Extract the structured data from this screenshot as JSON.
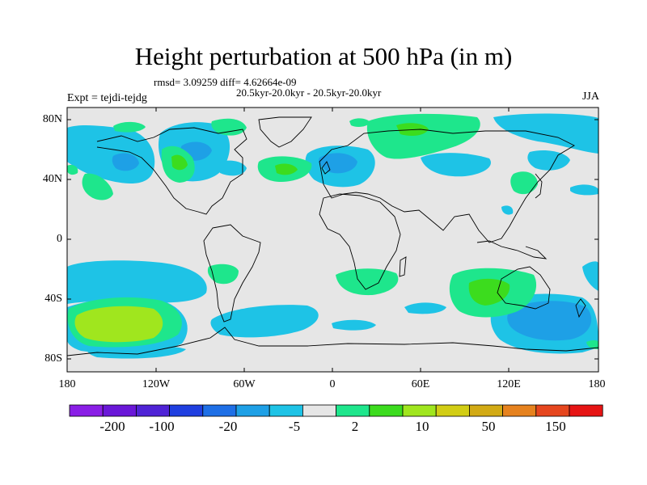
{
  "title": "Height perturbation at 500 hPa (in m)",
  "stats": "rmsd= 3.09259 diff= 4.62664e-09",
  "subtitle": "20.5kyr-20.0kyr - 20.5kyr-20.0kyr",
  "experiment": "Expt = tejdi-tejdg",
  "season": "JJA",
  "y_axis": {
    "ticks": [
      "80N",
      "40N",
      "0",
      "40S",
      "80S"
    ]
  },
  "x_axis": {
    "ticks": [
      "180",
      "120W",
      "60W",
      "0",
      "60E",
      "120E",
      "180"
    ]
  },
  "colorbar": {
    "colors": [
      "#8a1ee6",
      "#6a17d8",
      "#4f23d6",
      "#1f3fe0",
      "#1e6fe6",
      "#1ea0e6",
      "#1ec3e6",
      "#e6e6e6",
      "#1ee68c",
      "#3cdc1e",
      "#a0e61e",
      "#d2cd14",
      "#d2aa14",
      "#e6821e",
      "#e6461e",
      "#e61414"
    ],
    "labels": [
      "-200",
      "-100",
      "-20",
      "-5",
      "2",
      "10",
      "50",
      "150"
    ]
  }
}
